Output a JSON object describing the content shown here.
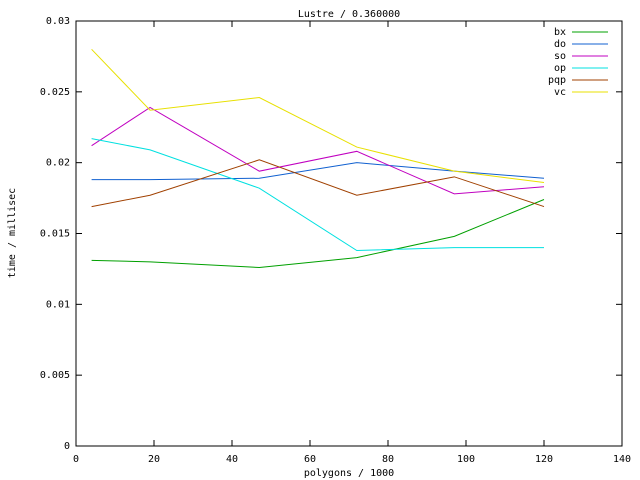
{
  "chart_data": {
    "type": "line",
    "title": "Lustre / 0.360000",
    "x_label": "polygons / 1000",
    "y_label": "time / millisec",
    "x": [
      4,
      19,
      47,
      72,
      97,
      120
    ],
    "series": [
      {
        "name": "bx",
        "color": "#00a000",
        "values": [
          0.0131,
          0.013,
          0.0126,
          0.0133,
          0.0148,
          0.0174
        ]
      },
      {
        "name": "do",
        "color": "#1060d0",
        "values": [
          0.0188,
          0.0188,
          0.0189,
          0.02,
          0.0194,
          0.0189
        ]
      },
      {
        "name": "so",
        "color": "#c000c0",
        "values": [
          0.0212,
          0.0239,
          0.0194,
          0.0208,
          0.0178,
          0.0183
        ]
      },
      {
        "name": "op",
        "color": "#00e0e0",
        "values": [
          0.0217,
          0.0209,
          0.0182,
          0.0138,
          0.014,
          0.014
        ]
      },
      {
        "name": "pqp",
        "color": "#a04000",
        "values": [
          0.0169,
          0.0177,
          0.0202,
          0.0177,
          0.019,
          0.0169
        ]
      },
      {
        "name": "vc",
        "color": "#e8e000",
        "values": [
          0.028,
          0.0237,
          0.0246,
          0.0211,
          0.0194,
          0.0186
        ]
      }
    ],
    "xlim": [
      0,
      140
    ],
    "xticks": [
      0,
      20,
      40,
      60,
      80,
      100,
      120,
      140
    ],
    "ylim": [
      0,
      0.03
    ],
    "yticks": [
      0,
      0.005,
      0.01,
      0.015,
      0.02,
      0.025,
      0.03
    ],
    "grid": false,
    "legend": "top-right"
  }
}
